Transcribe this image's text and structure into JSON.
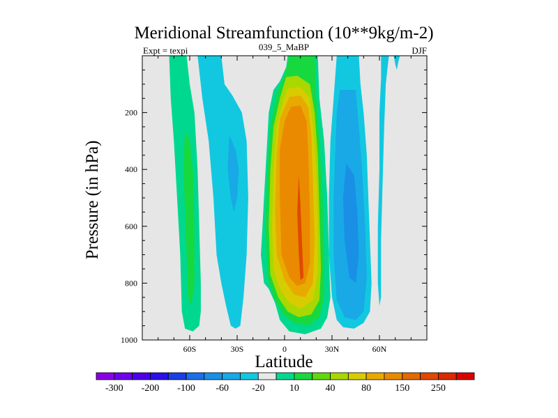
{
  "chart_data": {
    "type": "contour",
    "title": "Meridional Streamfunction (10**9kg/m-2)",
    "experiment": "Expt = texpi",
    "subtitle": "039_5_MaBP",
    "season": "DJF",
    "xlabel": "Latitude",
    "ylabel": "Pressure (in hPa)",
    "xlim": [
      -90,
      90
    ],
    "ylim": [
      1000,
      0
    ],
    "x_ticks": [
      {
        "value": -60,
        "label": "60S"
      },
      {
        "value": -30,
        "label": "30S"
      },
      {
        "value": 0,
        "label": "0"
      },
      {
        "value": 30,
        "label": "30N"
      },
      {
        "value": 60,
        "label": "60N"
      }
    ],
    "y_ticks": [
      {
        "value": 200,
        "label": "200"
      },
      {
        "value": 400,
        "label": "400"
      },
      {
        "value": 600,
        "label": "600"
      },
      {
        "value": 800,
        "label": "800"
      },
      {
        "value": 1000,
        "label": "1000"
      }
    ],
    "background_color": "#e6e6e6",
    "colorbar": {
      "colors": [
        "#8a00e6",
        "#6e00ea",
        "#4d00ea",
        "#2b10e8",
        "#1c3fe4",
        "#1c6fe8",
        "#1a8fe6",
        "#18a9e6",
        "#12c8e0",
        "#e8e8e8",
        "#00d890",
        "#18d840",
        "#60d810",
        "#a8d800",
        "#d8cc00",
        "#e8aa00",
        "#ea8a00",
        "#e26a00",
        "#e04a00",
        "#dc2800",
        "#da0000"
      ],
      "labels": [
        {
          "after_bin": 0,
          "text": "-300"
        },
        {
          "after_bin": 2,
          "text": "-200"
        },
        {
          "after_bin": 4,
          "text": "-100"
        },
        {
          "after_bin": 6,
          "text": "-60"
        },
        {
          "after_bin": 8,
          "text": "-20"
        },
        {
          "after_bin": 10,
          "text": "10"
        },
        {
          "after_bin": 12,
          "text": "40"
        },
        {
          "after_bin": 14,
          "text": "80"
        },
        {
          "after_bin": 16,
          "text": "150"
        },
        {
          "after_bin": 18,
          "text": "250"
        }
      ]
    },
    "contour_regions": [
      {
        "name": "sh-polar-cell-positive",
        "level": 10,
        "color": "#00d890",
        "outline": [
          [
            -73,
            0
          ],
          [
            -62,
            0
          ],
          [
            -60,
            100
          ],
          [
            -57,
            200
          ],
          [
            -55,
            400
          ],
          [
            -54,
            600
          ],
          [
            -53,
            800
          ],
          [
            -53,
            900
          ],
          [
            -54,
            950
          ],
          [
            -58,
            970
          ],
          [
            -63,
            960
          ],
          [
            -65,
            900
          ],
          [
            -66,
            700
          ],
          [
            -68,
            500
          ],
          [
            -70,
            300
          ],
          [
            -72,
            150
          ]
        ]
      },
      {
        "name": "sh-polar-cell-core",
        "level": 40,
        "color": "#18d840",
        "outline": [
          [
            -63,
            260
          ],
          [
            -60,
            300
          ],
          [
            -58,
            400
          ],
          [
            -57,
            600
          ],
          [
            -57,
            800
          ],
          [
            -59,
            880
          ],
          [
            -61,
            850
          ],
          [
            -62,
            700
          ],
          [
            -63,
            550
          ],
          [
            -64,
            400
          ]
        ]
      },
      {
        "name": "sh-ferrel-cell-negative",
        "level": -10,
        "color": "#12c8e0",
        "outline": [
          [
            -55,
            0
          ],
          [
            -40,
            0
          ],
          [
            -38,
            100
          ],
          [
            -33,
            140
          ],
          [
            -27,
            200
          ],
          [
            -24,
            300
          ],
          [
            -23,
            500
          ],
          [
            -24,
            700
          ],
          [
            -26,
            850
          ],
          [
            -28,
            950
          ],
          [
            -31,
            960
          ],
          [
            -34,
            950
          ],
          [
            -37,
            880
          ],
          [
            -40,
            800
          ],
          [
            -43,
            700
          ],
          [
            -45,
            500
          ],
          [
            -48,
            300
          ],
          [
            -52,
            150
          ]
        ]
      },
      {
        "name": "sh-ferrel-cell-core",
        "level": -20,
        "color": "#18a9e6",
        "outline": [
          [
            -35,
            280
          ],
          [
            -31,
            330
          ],
          [
            -29,
            400
          ],
          [
            -30,
            500
          ],
          [
            -32,
            550
          ],
          [
            -34,
            500
          ],
          [
            -36,
            400
          ]
        ]
      },
      {
        "name": "hadley-cell-positive-10",
        "level": 10,
        "color": "#00d890",
        "outline": [
          [
            2,
            0
          ],
          [
            21,
            0
          ],
          [
            22,
            150
          ],
          [
            25,
            300
          ],
          [
            27,
            500
          ],
          [
            28,
            700
          ],
          [
            29,
            850
          ],
          [
            27,
            920
          ],
          [
            23,
            960
          ],
          [
            13,
            980
          ],
          [
            3,
            970
          ],
          [
            -3,
            930
          ],
          [
            -6,
            870
          ],
          [
            -10,
            820
          ],
          [
            -13,
            800
          ],
          [
            -15,
            700
          ],
          [
            -14,
            600
          ],
          [
            -13,
            500
          ],
          [
            -12,
            400
          ],
          [
            -11,
            300
          ],
          [
            -10,
            200
          ],
          [
            -7,
            120
          ],
          [
            -3,
            90
          ],
          [
            1,
            40
          ]
        ]
      },
      {
        "name": "hadley-cell-40",
        "level": 40,
        "color": "#18d840",
        "outline": [
          [
            3,
            0
          ],
          [
            19,
            0
          ],
          [
            20,
            140
          ],
          [
            22,
            300
          ],
          [
            24,
            500
          ],
          [
            25,
            700
          ],
          [
            25,
            850
          ],
          [
            22,
            920
          ],
          [
            15,
            950
          ],
          [
            6,
            940
          ],
          [
            -1,
            910
          ],
          [
            -7,
            850
          ],
          [
            -11,
            780
          ],
          [
            -12,
            600
          ],
          [
            -11,
            400
          ],
          [
            -9,
            250
          ],
          [
            -5,
            130
          ],
          [
            0,
            70
          ]
        ]
      },
      {
        "name": "hadley-cell-80",
        "level": 80,
        "color": "#a8d800",
        "outline": [
          [
            1,
            75
          ],
          [
            8,
            70
          ],
          [
            16,
            100
          ],
          [
            19,
            200
          ],
          [
            21,
            350
          ],
          [
            22,
            550
          ],
          [
            23,
            750
          ],
          [
            22,
            860
          ],
          [
            17,
            910
          ],
          [
            9,
            920
          ],
          [
            2,
            900
          ],
          [
            -4,
            850
          ],
          [
            -9,
            770
          ],
          [
            -10,
            600
          ],
          [
            -9,
            400
          ],
          [
            -7,
            250
          ],
          [
            -3,
            150
          ]
        ]
      },
      {
        "name": "hadley-cell-120",
        "level": 120,
        "color": "#d8cc00",
        "outline": [
          [
            2,
            115
          ],
          [
            10,
            110
          ],
          [
            16,
            150
          ],
          [
            18,
            250
          ],
          [
            20,
            400
          ],
          [
            21,
            600
          ],
          [
            21,
            760
          ],
          [
            18,
            860
          ],
          [
            10,
            890
          ],
          [
            3,
            870
          ],
          [
            -3,
            820
          ],
          [
            -7,
            750
          ],
          [
            -8,
            600
          ],
          [
            -7,
            400
          ],
          [
            -5,
            250
          ],
          [
            -1,
            160
          ]
        ]
      },
      {
        "name": "hadley-cell-150",
        "level": 150,
        "color": "#e8aa00",
        "outline": [
          [
            3,
            145
          ],
          [
            10,
            140
          ],
          [
            15,
            180
          ],
          [
            17,
            280
          ],
          [
            18,
            450
          ],
          [
            19,
            650
          ],
          [
            18,
            800
          ],
          [
            13,
            850
          ],
          [
            6,
            840
          ],
          [
            0,
            790
          ],
          [
            -5,
            700
          ],
          [
            -6,
            550
          ],
          [
            -5,
            350
          ],
          [
            -3,
            220
          ]
        ]
      },
      {
        "name": "hadley-cell-200",
        "level": 200,
        "color": "#ea8a00",
        "outline": [
          [
            4,
            180
          ],
          [
            10,
            175
          ],
          [
            14,
            230
          ],
          [
            15,
            350
          ],
          [
            16,
            550
          ],
          [
            16,
            730
          ],
          [
            13,
            800
          ],
          [
            8,
            810
          ],
          [
            3,
            780
          ],
          [
            -2,
            700
          ],
          [
            -3,
            500
          ],
          [
            -3,
            330
          ],
          [
            0,
            230
          ]
        ]
      },
      {
        "name": "hadley-cell-core-300",
        "level": 300,
        "color": "#e04a00",
        "outline": [
          [
            9,
            420
          ],
          [
            10,
            520
          ],
          [
            11,
            650
          ],
          [
            12,
            780
          ],
          [
            10,
            790
          ],
          [
            9,
            700
          ],
          [
            8,
            550
          ]
        ]
      },
      {
        "name": "nh-ferrel-cell-negative",
        "level": -10,
        "color": "#12c8e0",
        "outline": [
          [
            33,
            0
          ],
          [
            47,
            0
          ],
          [
            48,
            100
          ],
          [
            50,
            200
          ],
          [
            52,
            350
          ],
          [
            53,
            500
          ],
          [
            54,
            650
          ],
          [
            55,
            800
          ],
          [
            54,
            900
          ],
          [
            50,
            940
          ],
          [
            44,
            960
          ],
          [
            37,
            955
          ],
          [
            33,
            930
          ],
          [
            30,
            850
          ],
          [
            28,
            700
          ],
          [
            28,
            500
          ],
          [
            29,
            300
          ],
          [
            31,
            150
          ]
        ]
      },
      {
        "name": "nh-ferrel-cell-20",
        "level": -20,
        "color": "#18a9e6",
        "outline": [
          [
            35,
            120
          ],
          [
            45,
            120
          ],
          [
            47,
            250
          ],
          [
            49,
            400
          ],
          [
            51,
            600
          ],
          [
            52,
            780
          ],
          [
            50,
            900
          ],
          [
            45,
            930
          ],
          [
            38,
            920
          ],
          [
            33,
            860
          ],
          [
            31,
            700
          ],
          [
            31,
            500
          ],
          [
            32,
            350
          ],
          [
            33,
            200
          ]
        ]
      },
      {
        "name": "nh-ferrel-cell-core",
        "level": -40,
        "color": "#1a8fe6",
        "outline": [
          [
            39,
            380
          ],
          [
            44,
            420
          ],
          [
            46,
            550
          ],
          [
            47,
            700
          ],
          [
            45,
            800
          ],
          [
            41,
            780
          ],
          [
            38,
            650
          ],
          [
            37,
            500
          ]
        ]
      },
      {
        "name": "nh-polar-cell-tongue",
        "level": -10,
        "color": "#12c8e0",
        "outline": [
          [
            61,
            0
          ],
          [
            66,
            0
          ],
          [
            65,
            50
          ],
          [
            64,
            100
          ],
          [
            63,
            250
          ],
          [
            62,
            450
          ],
          [
            61,
            650
          ],
          [
            61,
            850
          ],
          [
            60,
            880
          ],
          [
            59,
            800
          ],
          [
            59,
            600
          ],
          [
            60,
            400
          ],
          [
            60,
            200
          ],
          [
            61,
            80
          ]
        ]
      },
      {
        "name": "nh-top-sliver",
        "level": -10,
        "color": "#12c8e0",
        "outline": [
          [
            69,
            0
          ],
          [
            73,
            0
          ],
          [
            72,
            20
          ],
          [
            71,
            50
          ],
          [
            70,
            30
          ]
        ]
      }
    ]
  }
}
